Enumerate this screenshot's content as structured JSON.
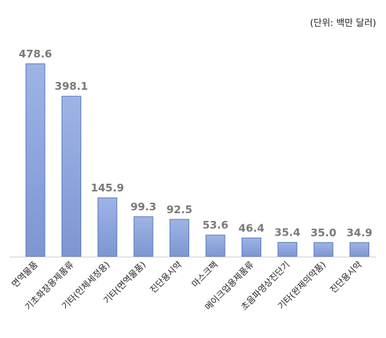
{
  "chart_data": {
    "type": "bar",
    "unit_note": "(단위: 백만 달러)",
    "title": "",
    "xlabel": "",
    "ylabel": "",
    "ylim": [
      0,
      500
    ],
    "grid": false,
    "legend": "none",
    "bar_color_top": "#9eb4e6",
    "bar_color_bottom": "#7d96d2",
    "bar_edge": "#5a74b8",
    "categories": [
      "면역물품",
      "기초화장용제품류",
      "기타(인체세정용)",
      "기타(면역물품)",
      "진단용시약",
      "마스크팩",
      "메이크업용제품류",
      "초음파영상진단기",
      "기타(완제의약품)",
      "진단용시약"
    ],
    "values": [
      478.6,
      398.1,
      145.9,
      99.3,
      92.5,
      53.6,
      46.4,
      35.4,
      35.0,
      34.9
    ],
    "value_labels": [
      "478.6",
      "398.1",
      "145.9",
      "99.3",
      "92.5",
      "53.6",
      "46.4",
      "35.4",
      "35.0",
      "34.9"
    ]
  }
}
